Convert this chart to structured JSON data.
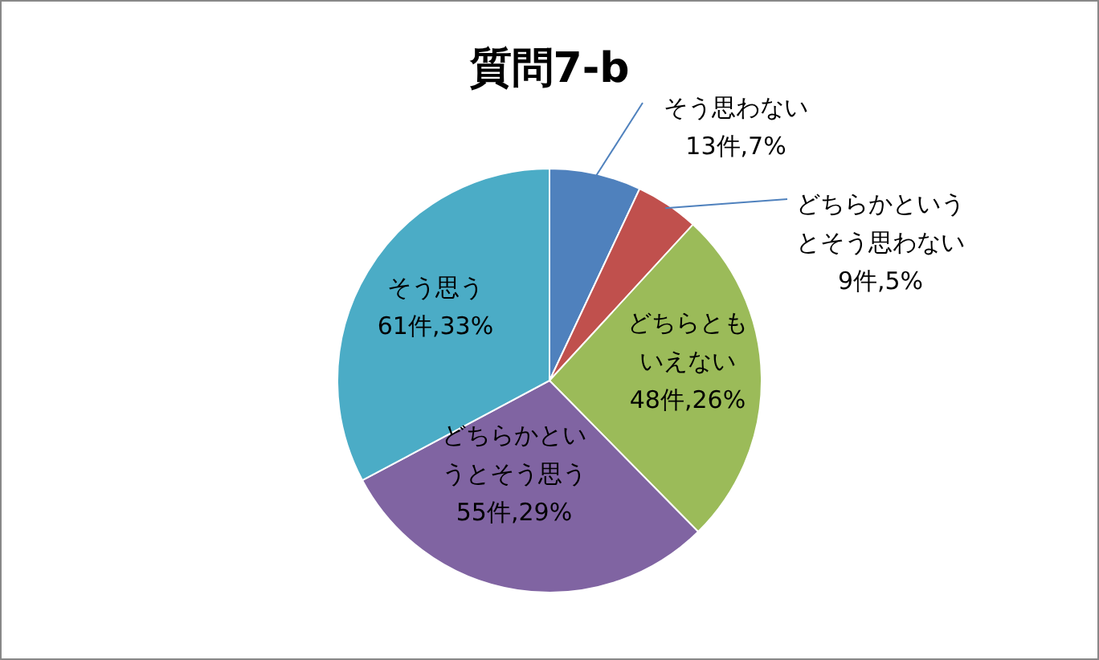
{
  "chart_data": {
    "type": "pie",
    "title": "質問7-b",
    "categories": [
      "そう思わない",
      "どちらかというとそう思わない",
      "どちらともいえない",
      "どちらかというとそう思う",
      "そう思う"
    ],
    "values": [
      13,
      9,
      48,
      55,
      61
    ],
    "value_labels": [
      "13件,7%",
      "9件,5%",
      "48件,26%",
      "55件,29%",
      "61件,33%"
    ],
    "colors": [
      "#4f81bd",
      "#c0504d",
      "#9bbb59",
      "#8064a2",
      "#4bacc6"
    ]
  }
}
